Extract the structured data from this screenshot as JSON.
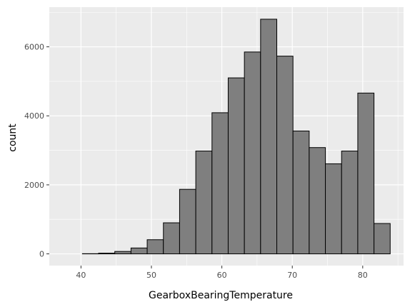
{
  "chart_data": {
    "type": "histogram",
    "xlabel": "GearboxBearingTemperature",
    "ylabel": "count",
    "xlim": [
      35.5,
      85.8
    ],
    "ylim": [
      -340,
      7150
    ],
    "x_ticks": [
      40,
      50,
      60,
      70,
      80
    ],
    "x_minor_ticks": [
      35,
      45,
      55,
      65,
      75,
      85
    ],
    "y_ticks": [
      0,
      2000,
      4000,
      6000
    ],
    "y_minor_ticks": [
      1000,
      3000,
      5000,
      7000
    ],
    "bins": [
      {
        "x0": 37.9,
        "x1": 40.2,
        "count": 0
      },
      {
        "x0": 40.2,
        "x1": 42.5,
        "count": 5
      },
      {
        "x0": 42.5,
        "x1": 44.8,
        "count": 20
      },
      {
        "x0": 44.8,
        "x1": 47.1,
        "count": 70
      },
      {
        "x0": 47.1,
        "x1": 49.4,
        "count": 170
      },
      {
        "x0": 49.4,
        "x1": 51.7,
        "count": 410
      },
      {
        "x0": 51.7,
        "x1": 54.0,
        "count": 900
      },
      {
        "x0": 54.0,
        "x1": 56.3,
        "count": 1870
      },
      {
        "x0": 56.3,
        "x1": 58.6,
        "count": 2980
      },
      {
        "x0": 58.6,
        "x1": 60.9,
        "count": 4090
      },
      {
        "x0": 60.9,
        "x1": 63.2,
        "count": 5100
      },
      {
        "x0": 63.2,
        "x1": 65.5,
        "count": 5850
      },
      {
        "x0": 65.5,
        "x1": 67.8,
        "count": 6800
      },
      {
        "x0": 67.8,
        "x1": 70.1,
        "count": 5730
      },
      {
        "x0": 70.1,
        "x1": 72.4,
        "count": 3560
      },
      {
        "x0": 72.4,
        "x1": 74.7,
        "count": 3080
      },
      {
        "x0": 74.7,
        "x1": 77.0,
        "count": 2610
      },
      {
        "x0": 77.0,
        "x1": 79.3,
        "count": 2980
      },
      {
        "x0": 79.3,
        "x1": 81.6,
        "count": 4660
      },
      {
        "x0": 81.6,
        "x1": 83.9,
        "count": 880
      }
    ],
    "grid": true,
    "legend": "none",
    "colors": {
      "panel": "#ebebeb",
      "grid": "#ffffff",
      "bar_fill": "#7f7f7f",
      "bar_stroke": "#000000"
    }
  }
}
